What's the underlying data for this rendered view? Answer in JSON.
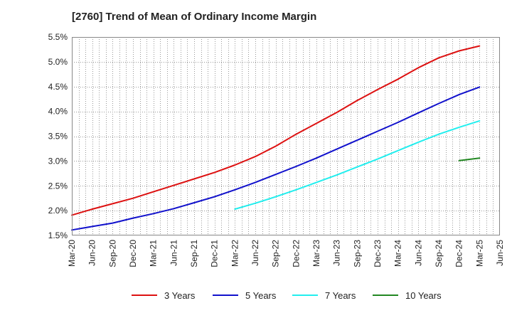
{
  "chart_data": {
    "type": "line",
    "title": "[2760]  Trend of Mean of Ordinary Income Margin",
    "xlabel": "",
    "ylabel": "",
    "x_ticks": [
      "Mar-20",
      "Jun-20",
      "Sep-20",
      "Dec-20",
      "Mar-21",
      "Jun-21",
      "Sep-21",
      "Dec-21",
      "Mar-22",
      "Jun-22",
      "Sep-22",
      "Dec-22",
      "Mar-23",
      "Jun-23",
      "Sep-23",
      "Dec-23",
      "Mar-24",
      "Jun-24",
      "Sep-24",
      "Dec-24",
      "Mar-25",
      "Jun-25"
    ],
    "y_ticks": [
      "1.5%",
      "2.0%",
      "2.5%",
      "3.0%",
      "3.5%",
      "4.0%",
      "4.5%",
      "5.0%",
      "5.5%"
    ],
    "ylim": [
      1.5,
      5.5
    ],
    "grid": true,
    "legend_position": "bottom",
    "series": [
      {
        "name": "3 Years",
        "color": "#dd1111",
        "points": [
          [
            "Mar-20",
            1.91
          ],
          [
            "Jun-20",
            2.03
          ],
          [
            "Sep-20",
            2.14
          ],
          [
            "Dec-20",
            2.25
          ],
          [
            "Mar-21",
            2.38
          ],
          [
            "Jun-21",
            2.51
          ],
          [
            "Sep-21",
            2.64
          ],
          [
            "Dec-21",
            2.77
          ],
          [
            "Mar-22",
            2.92
          ],
          [
            "Jun-22",
            3.09
          ],
          [
            "Sep-22",
            3.3
          ],
          [
            "Dec-22",
            3.54
          ],
          [
            "Mar-23",
            3.76
          ],
          [
            "Jun-23",
            3.98
          ],
          [
            "Sep-23",
            4.22
          ],
          [
            "Dec-23",
            4.44
          ],
          [
            "Mar-24",
            4.65
          ],
          [
            "Jun-24",
            4.88
          ],
          [
            "Sep-24",
            5.08
          ],
          [
            "Dec-24",
            5.22
          ],
          [
            "Mar-25",
            5.32
          ]
        ]
      },
      {
        "name": "5 Years",
        "color": "#1111cc",
        "points": [
          [
            "Mar-20",
            1.61
          ],
          [
            "Jun-20",
            1.68
          ],
          [
            "Sep-20",
            1.75
          ],
          [
            "Dec-20",
            1.85
          ],
          [
            "Mar-21",
            1.94
          ],
          [
            "Jun-21",
            2.04
          ],
          [
            "Sep-21",
            2.16
          ],
          [
            "Dec-21",
            2.28
          ],
          [
            "Mar-22",
            2.42
          ],
          [
            "Jun-22",
            2.57
          ],
          [
            "Sep-22",
            2.73
          ],
          [
            "Dec-22",
            2.89
          ],
          [
            "Mar-23",
            3.06
          ],
          [
            "Jun-23",
            3.24
          ],
          [
            "Sep-23",
            3.42
          ],
          [
            "Dec-23",
            3.6
          ],
          [
            "Mar-24",
            3.78
          ],
          [
            "Jun-24",
            3.97
          ],
          [
            "Sep-24",
            4.16
          ],
          [
            "Dec-24",
            4.34
          ],
          [
            "Mar-25",
            4.49
          ]
        ]
      },
      {
        "name": "7 Years",
        "color": "#22eeee",
        "points": [
          [
            "Mar-22",
            2.03
          ],
          [
            "Jun-22",
            2.15
          ],
          [
            "Sep-22",
            2.28
          ],
          [
            "Dec-22",
            2.42
          ],
          [
            "Mar-23",
            2.57
          ],
          [
            "Jun-23",
            2.72
          ],
          [
            "Sep-23",
            2.88
          ],
          [
            "Dec-23",
            3.04
          ],
          [
            "Mar-24",
            3.21
          ],
          [
            "Jun-24",
            3.38
          ],
          [
            "Sep-24",
            3.54
          ],
          [
            "Dec-24",
            3.68
          ],
          [
            "Mar-25",
            3.81
          ]
        ]
      },
      {
        "name": "10 Years",
        "color": "#228822",
        "points": [
          [
            "Dec-24",
            3.01
          ],
          [
            "Mar-25",
            3.06
          ]
        ]
      }
    ]
  }
}
